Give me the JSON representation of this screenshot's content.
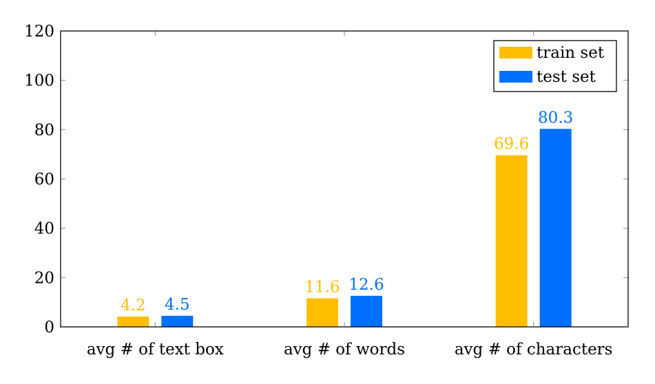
{
  "chart_data": {
    "type": "bar",
    "categories": [
      "avg # of text box",
      "avg # of words",
      "avg # of characters"
    ],
    "series": [
      {
        "name": "train set",
        "values": [
          4.2,
          11.6,
          69.6
        ],
        "labels": [
          "4.2",
          "11.6",
          "69.6"
        ],
        "color": "#FFBF00"
      },
      {
        "name": "test set",
        "values": [
          4.5,
          12.6,
          80.3
        ],
        "labels": [
          "4.5",
          "12.6",
          "80.3"
        ],
        "color": "#0070FF"
      }
    ],
    "ylim": [
      0,
      120
    ],
    "yticks": [
      0,
      20,
      40,
      60,
      80,
      100,
      120
    ],
    "ytick_labels": [
      "0",
      "20",
      "40",
      "60",
      "80",
      "100",
      "120"
    ],
    "title": "",
    "xlabel": "",
    "ylabel": "",
    "grid": false,
    "legend_position": "top-right"
  }
}
